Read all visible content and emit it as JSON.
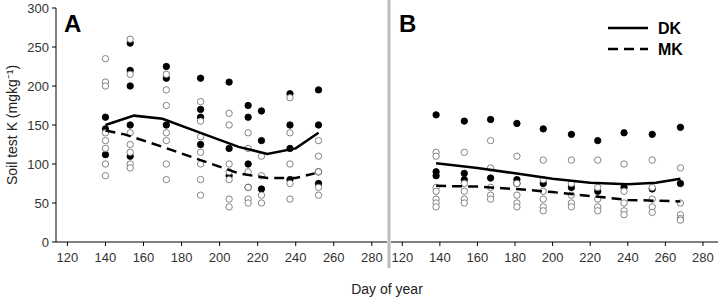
{
  "chart_data": [
    {
      "type": "scatter",
      "title": "A",
      "xlabel": "Day of year",
      "ylabel": "Soil test K (mgkg⁻¹)",
      "xlim": [
        114,
        288
      ],
      "ylim": [
        0,
        300
      ],
      "xticks": [
        120,
        140,
        160,
        180,
        200,
        220,
        240,
        260,
        280
      ],
      "yticks": [
        0,
        50,
        100,
        150,
        200,
        250,
        300
      ],
      "series": [
        {
          "name": "DK",
          "type": "line",
          "line_style": "solid",
          "color": "#000000",
          "x": [
            140,
            155,
            170,
            190,
            210,
            225,
            240,
            252
          ],
          "values": [
            150,
            162,
            158,
            140,
            122,
            113,
            120,
            140
          ]
        },
        {
          "name": "MK",
          "type": "line",
          "line_style": "dashed",
          "color": "#000000",
          "x": [
            140,
            150,
            170,
            190,
            210,
            225,
            240,
            250
          ],
          "values": [
            143,
            138,
            122,
            105,
            88,
            82,
            82,
            88
          ]
        },
        {
          "type": "scatter",
          "marker": "circle",
          "color": "#000000",
          "x": [
            140,
            140,
            140,
            153,
            153,
            153,
            153,
            153,
            172,
            172,
            172,
            190,
            190,
            190,
            190,
            205,
            205,
            205,
            215,
            215,
            215,
            215,
            222,
            222,
            222,
            237,
            237,
            237,
            237,
            252,
            252,
            252,
            252
          ],
          "values": [
            160,
            145,
            112,
            255,
            220,
            200,
            150,
            110,
            225,
            210,
            150,
            210,
            170,
            160,
            125,
            205,
            120,
            85,
            175,
            160,
            100,
            70,
            168,
            130,
            68,
            190,
            150,
            120,
            80,
            195,
            150,
            90,
            75
          ]
        },
        {
          "type": "scatter",
          "marker": "open_circle",
          "color": "#000000",
          "x": [
            140,
            140,
            140,
            140,
            140,
            140,
            140,
            140,
            153,
            153,
            153,
            153,
            153,
            153,
            153,
            172,
            172,
            172,
            172,
            172,
            172,
            172,
            190,
            190,
            190,
            190,
            190,
            190,
            190,
            205,
            205,
            205,
            205,
            205,
            205,
            205,
            215,
            215,
            215,
            215,
            215,
            215,
            222,
            222,
            222,
            222,
            237,
            237,
            237,
            237,
            237,
            252,
            252,
            252,
            252,
            252
          ],
          "values": [
            235,
            205,
            200,
            140,
            130,
            100,
            85,
            120,
            260,
            215,
            140,
            125,
            115,
            100,
            95,
            215,
            195,
            175,
            140,
            130,
            100,
            80,
            180,
            155,
            135,
            115,
            100,
            80,
            60,
            165,
            150,
            100,
            90,
            80,
            55,
            45,
            140,
            120,
            90,
            70,
            55,
            50,
            110,
            85,
            60,
            50,
            185,
            140,
            100,
            75,
            55,
            130,
            110,
            90,
            70,
            60
          ]
        }
      ]
    },
    {
      "type": "scatter",
      "title": "B",
      "legend": "upper right",
      "tick_labels": "x",
      "xlim": [
        114,
        288
      ],
      "ylim": [
        0,
        300
      ],
      "xticks": [
        120,
        140,
        160,
        180,
        200,
        220,
        240,
        260,
        280
      ],
      "series": [
        {
          "name": "DK",
          "type": "line",
          "line_style": "solid",
          "color": "#000000",
          "x": [
            138,
            160,
            180,
            200,
            220,
            240,
            255,
            268
          ],
          "values": [
            101,
            95,
            88,
            81,
            76,
            74,
            76,
            81
          ]
        },
        {
          "name": "MK",
          "type": "line",
          "line_style": "dashed",
          "color": "#000000",
          "x": [
            138,
            160,
            180,
            200,
            220,
            240,
            268
          ],
          "values": [
            72,
            71,
            68,
            64,
            59,
            54,
            52
          ]
        },
        {
          "type": "scatter",
          "marker": "circle",
          "color": "#000000",
          "x": [
            138,
            138,
            138,
            153,
            153,
            153,
            167,
            167,
            181,
            181,
            181,
            195,
            195,
            210,
            210,
            224,
            224,
            238,
            238,
            253,
            253,
            268,
            268
          ],
          "values": [
            163,
            90,
            85,
            155,
            88,
            80,
            157,
            82,
            152,
            80,
            75,
            145,
            75,
            138,
            70,
            130,
            65,
            140,
            70,
            138,
            68,
            147,
            75
          ]
        },
        {
          "type": "scatter",
          "marker": "open_circle",
          "color": "#000000",
          "x": [
            138,
            138,
            138,
            138,
            138,
            138,
            138,
            153,
            153,
            153,
            153,
            153,
            167,
            167,
            167,
            167,
            167,
            181,
            181,
            181,
            181,
            181,
            195,
            195,
            195,
            195,
            195,
            195,
            210,
            210,
            210,
            210,
            210,
            224,
            224,
            224,
            224,
            224,
            238,
            238,
            238,
            238,
            238,
            253,
            253,
            253,
            253,
            253,
            268,
            268,
            268,
            268,
            268
          ],
          "values": [
            115,
            110,
            70,
            65,
            55,
            50,
            45,
            115,
            75,
            65,
            55,
            50,
            130,
            95,
            70,
            60,
            55,
            110,
            75,
            60,
            50,
            45,
            105,
            80,
            65,
            55,
            45,
            40,
            105,
            75,
            60,
            50,
            45,
            105,
            70,
            55,
            45,
            40,
            100,
            65,
            50,
            40,
            35,
            105,
            70,
            55,
            45,
            38,
            95,
            50,
            35,
            30,
            28
          ]
        }
      ]
    }
  ]
}
